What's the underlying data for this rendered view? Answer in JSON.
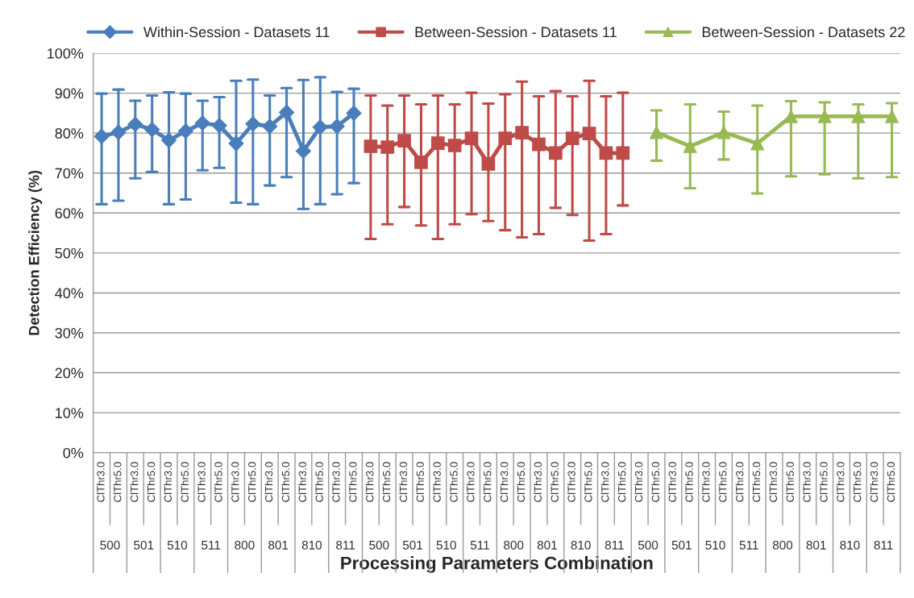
{
  "chart_data": {
    "type": "line",
    "xlabel": "Processing Parameters Combination",
    "ylabel": "Detection Efficiency (%)",
    "categories": [
      "ClThr3.0",
      "ClThr5.0",
      "ClThr3.0",
      "ClThr5.0",
      "ClThr3.0",
      "ClThr5.0",
      "ClThr3.0",
      "ClThr5.0",
      "ClThr3.0",
      "ClThr5.0",
      "ClThr3.0",
      "ClThr5.0",
      "ClThr3.0",
      "ClThr5.0",
      "ClThr3.0",
      "ClThr5.0",
      "ClThr3.0",
      "ClThr5.0",
      "ClThr3.0",
      "ClThr5.0",
      "ClThr3.0",
      "ClThr5.0",
      "ClThr3.0",
      "ClThr5.0",
      "ClThr3.0",
      "ClThr5.0",
      "ClThr3.0",
      "ClThr5.0",
      "ClThr3.0",
      "ClThr5.0",
      "ClThr3.0",
      "ClThr5.0",
      "ClThr3.0",
      "ClThr5.0",
      "ClThr3.0",
      "ClThr5.0",
      "ClThr3.0",
      "ClThr5.0",
      "ClThr3.0",
      "ClThr5.0",
      "ClThr3.0",
      "ClThr5.0",
      "ClThr3.0",
      "ClThr5.0",
      "ClThr3.0",
      "ClThr5.0",
      "ClThr3.0",
      "ClThr5.0"
    ],
    "annotations": [
      "500",
      "501",
      "510",
      "511",
      "800",
      "801",
      "810",
      "811",
      "500",
      "501",
      "510",
      "511",
      "800",
      "801",
      "810",
      "811",
      "500",
      "501",
      "510",
      "511",
      "800",
      "801",
      "810",
      "811"
    ],
    "series": [
      {
        "name": "Within-Session - Datasets 11",
        "color": "#4a7ebb",
        "marker": "diamond",
        "values": [
          79.2,
          80.2,
          82.2,
          80.9,
          78.2,
          80.5,
          82.5,
          81.9,
          77.4,
          82.3,
          81.7,
          85.2,
          75.5,
          81.5,
          81.7,
          85.0,
          null,
          null,
          null,
          null,
          null,
          null,
          null,
          null,
          null,
          null,
          null,
          null,
          null,
          null,
          null,
          null,
          null,
          null,
          null,
          null,
          null,
          null,
          null,
          null,
          null,
          null,
          null,
          null,
          null,
          null,
          null,
          null
        ],
        "errors": [
          [
            62.2,
            89.9
          ],
          [
            63.1,
            90.9
          ],
          [
            68.7,
            88.1
          ],
          [
            70.3,
            89.4
          ],
          [
            62.2,
            90.2
          ],
          [
            63.4,
            89.9
          ],
          [
            70.7,
            88.1
          ],
          [
            71.3,
            89.0
          ],
          [
            62.6,
            93.1
          ],
          [
            62.2,
            93.4
          ],
          [
            66.9,
            89.4
          ],
          [
            69.0,
            91.3
          ],
          [
            61.0,
            93.3
          ],
          [
            62.2,
            94.0
          ],
          [
            64.7,
            90.3
          ],
          [
            67.5,
            91.1
          ],
          null,
          null,
          null,
          null,
          null,
          null,
          null,
          null,
          null,
          null,
          null,
          null,
          null,
          null,
          null,
          null,
          null,
          null,
          null,
          null,
          null,
          null,
          null,
          null,
          null,
          null,
          null,
          null,
          null,
          null,
          null,
          null
        ]
      },
      {
        "name": "Between-Session - Datasets 11",
        "color": "#be4b48",
        "marker": "square",
        "values": [
          null,
          null,
          null,
          null,
          null,
          null,
          null,
          null,
          null,
          null,
          null,
          null,
          null,
          null,
          null,
          null,
          76.7,
          76.5,
          78.1,
          72.7,
          77.5,
          76.9,
          78.7,
          72.3,
          78.7,
          80.1,
          77.2,
          75.0,
          78.7,
          79.9,
          75.0,
          75.0,
          null,
          null,
          null,
          null,
          null,
          null,
          null,
          null,
          null,
          null,
          null,
          null,
          null,
          null,
          null,
          null
        ],
        "errors": [
          null,
          null,
          null,
          null,
          null,
          null,
          null,
          null,
          null,
          null,
          null,
          null,
          null,
          null,
          null,
          null,
          [
            53.5,
            89.4
          ],
          [
            57.2,
            86.9
          ],
          [
            61.5,
            89.4
          ],
          [
            56.9,
            87.2
          ],
          [
            53.5,
            89.4
          ],
          [
            57.2,
            87.2
          ],
          [
            59.7,
            90.1
          ],
          [
            58.0,
            87.4
          ],
          [
            55.7,
            89.7
          ],
          [
            53.9,
            92.9
          ],
          [
            54.7,
            89.2
          ],
          [
            61.3,
            90.5
          ],
          [
            59.5,
            89.2
          ],
          [
            53.1,
            93.1
          ],
          [
            54.7,
            89.2
          ],
          [
            61.9,
            90.1
          ],
          null,
          null,
          null,
          null,
          null,
          null,
          null,
          null,
          null,
          null,
          null,
          null,
          null,
          null,
          null,
          null
        ]
      },
      {
        "name": "Between-Session - Datasets 22",
        "color": "#98b954",
        "marker": "triangle",
        "values": [
          null,
          null,
          null,
          null,
          null,
          null,
          null,
          null,
          null,
          null,
          null,
          null,
          null,
          null,
          null,
          null,
          null,
          null,
          null,
          null,
          null,
          null,
          null,
          null,
          null,
          null,
          null,
          null,
          null,
          null,
          null,
          null,
          null,
          80.2,
          null,
          76.7,
          null,
          80.2,
          null,
          77.4,
          null,
          84.2,
          null,
          84.2,
          null,
          84.2,
          null,
          84.2
        ],
        "errors": [
          null,
          null,
          null,
          null,
          null,
          null,
          null,
          null,
          null,
          null,
          null,
          null,
          null,
          null,
          null,
          null,
          null,
          null,
          null,
          null,
          null,
          null,
          null,
          null,
          null,
          null,
          null,
          null,
          null,
          null,
          null,
          null,
          null,
          [
            73.1,
            85.7
          ],
          null,
          [
            66.2,
            87.2
          ],
          null,
          [
            73.4,
            85.4
          ],
          null,
          [
            64.9,
            86.9
          ],
          null,
          [
            69.2,
            88.0
          ],
          null,
          [
            69.7,
            87.7
          ],
          null,
          [
            68.7,
            87.2
          ],
          null,
          [
            69.0,
            87.5
          ]
        ]
      }
    ],
    "ylim": [
      0,
      100
    ],
    "yticks": [
      {
        "value": 0,
        "label": "0%"
      },
      {
        "value": 10,
        "label": "10%"
      },
      {
        "value": 20,
        "label": "20%"
      },
      {
        "value": 30,
        "label": "30%"
      },
      {
        "value": 40,
        "label": "40%"
      },
      {
        "value": 50,
        "label": "50%"
      },
      {
        "value": 60,
        "label": "60%"
      },
      {
        "value": 70,
        "label": "70%"
      },
      {
        "value": 80,
        "label": "80%"
      },
      {
        "value": 90,
        "label": "90%"
      },
      {
        "value": 100,
        "label": "100%"
      }
    ],
    "grid": "y",
    "legend": "top"
  }
}
